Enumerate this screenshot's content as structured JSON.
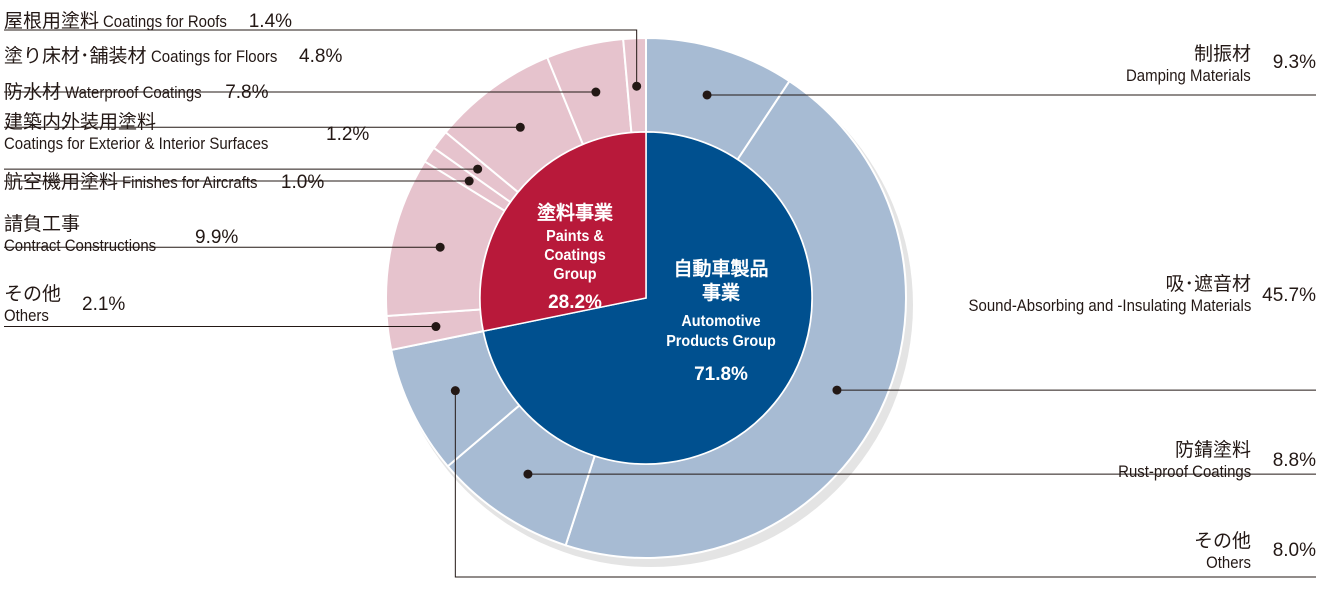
{
  "colors": {
    "paints_inner": "#b8193a",
    "automotive_inner": "#00508f",
    "paints_outer": "#e6c3cd",
    "automotive_outer": "#a7bbd3",
    "leader": "#231815"
  },
  "chart_data": {
    "type": "pie",
    "inner": [
      {
        "ja": "自動車製品事業",
        "en": "Automotive Products Group",
        "value": 71.8,
        "value_label": "71.8%"
      },
      {
        "ja": "塗料事業",
        "en": "Paints & Coatings Group",
        "value": 28.2,
        "value_label": "28.2%"
      }
    ],
    "outer": [
      {
        "group": "Automotive",
        "ja": "制振材",
        "en": "Damping Materials",
        "value": 9.3,
        "value_label": "9.3%"
      },
      {
        "group": "Automotive",
        "ja": "吸･遮音材",
        "en": "Sound-Absorbing and -Insulating Materials",
        "value": 45.7,
        "value_label": "45.7%"
      },
      {
        "group": "Automotive",
        "ja": "防錆塗料",
        "en": "Rust-proof Coatings",
        "value": 8.8,
        "value_label": "8.8%"
      },
      {
        "group": "Automotive",
        "ja": "その他",
        "en": "Others",
        "value": 8.0,
        "value_label": "8.0%"
      },
      {
        "group": "Paints",
        "ja": "その他",
        "en": "Others",
        "value": 2.1,
        "value_label": "2.1%"
      },
      {
        "group": "Paints",
        "ja": "請負工事",
        "en": "Contract Constructions",
        "value": 9.9,
        "value_label": "9.9%"
      },
      {
        "group": "Paints",
        "ja": "航空機用塗料",
        "en": "Finishes for Aircrafts",
        "value": 1.0,
        "value_label": "1.0%"
      },
      {
        "group": "Paints",
        "ja": "建築内外装用塗料",
        "en": "Coatings for Exterior & Interior Surfaces",
        "value": 1.2,
        "value_label": "1.2%"
      },
      {
        "group": "Paints",
        "ja": "防水材",
        "en": "Waterproof Coatings",
        "value": 7.8,
        "value_label": "7.8%"
      },
      {
        "group": "Paints",
        "ja": "塗り床材･舗装材",
        "en": "Coatings for Floors",
        "value": 4.8,
        "value_label": "4.8%"
      },
      {
        "group": "Paints",
        "ja": "屋根用塗料",
        "en": "Coatings for Roofs",
        "value": 1.4,
        "value_label": "1.4%"
      }
    ]
  }
}
